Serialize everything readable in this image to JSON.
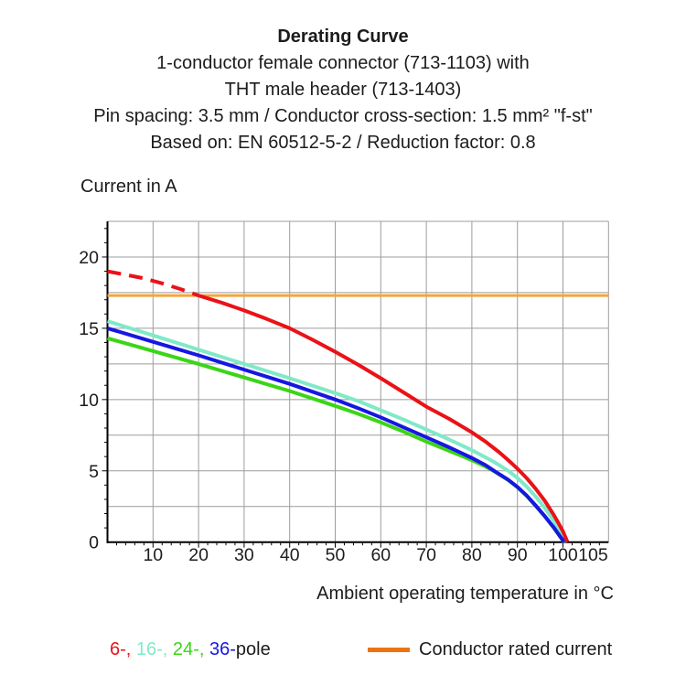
{
  "header": {
    "title": "Derating Curve",
    "subtitle_lines": [
      "1-conductor female connector (713-1103) with",
      "THT male header (713-1403)",
      "Pin spacing: 3.5 mm / Conductor cross-section: 1.5 mm² \"f-st\"",
      "Based on: EN 60512-5-2 / Reduction factor: 0.8"
    ]
  },
  "chart_data": {
    "type": "line",
    "title": "Derating Curve",
    "xlabel": "Ambient operating temperature in °C",
    "ylabel": "Current in A",
    "xlim": [
      0,
      110
    ],
    "ylim": [
      0,
      22.5
    ],
    "x_grid_step": 10,
    "y_grid_step": 2.5,
    "x_minor_tick_step": 2,
    "y_minor_tick_step": 1,
    "grid": true,
    "grid_color": "#9c9c9c",
    "axis_color": "#000000",
    "x_ticks": [
      10,
      20,
      30,
      40,
      50,
      60,
      70,
      80,
      90,
      100,
      105
    ],
    "y_ticks": [
      0,
      5,
      10,
      15,
      20
    ],
    "series": [
      {
        "name": "Conductor rated current",
        "color": "#f6a43c",
        "width": 3,
        "points": [
          [
            0,
            17.3
          ],
          [
            110,
            17.3
          ]
        ]
      },
      {
        "name": "16-pole",
        "color": "#7fe9c8",
        "width": 4,
        "points": [
          [
            0,
            15.5
          ],
          [
            10,
            14.5
          ],
          [
            20,
            13.5
          ],
          [
            30,
            12.5
          ],
          [
            40,
            11.5
          ],
          [
            50,
            10.45
          ],
          [
            55,
            9.9
          ],
          [
            60,
            9.25
          ],
          [
            65,
            8.6
          ],
          [
            70,
            7.9
          ],
          [
            75,
            7.2
          ],
          [
            80,
            6.45
          ],
          [
            83,
            5.95
          ],
          [
            85,
            5.6
          ],
          [
            88,
            5.0
          ],
          [
            90,
            4.5
          ],
          [
            92,
            3.9
          ],
          [
            94,
            3.2
          ],
          [
            96,
            2.4
          ],
          [
            98,
            1.5
          ],
          [
            99,
            0.95
          ],
          [
            100,
            0.35
          ],
          [
            100.6,
            0
          ]
        ]
      },
      {
        "name": "24-pole",
        "color": "#3bd517",
        "width": 4,
        "points": [
          [
            0,
            14.3
          ],
          [
            10,
            13.4
          ],
          [
            20,
            12.5
          ],
          [
            30,
            11.55
          ],
          [
            40,
            10.6
          ],
          [
            50,
            9.55
          ],
          [
            55,
            9.0
          ],
          [
            60,
            8.4
          ],
          [
            65,
            7.75
          ],
          [
            70,
            7.05
          ],
          [
            75,
            6.4
          ],
          [
            80,
            5.75
          ],
          [
            83,
            5.3
          ],
          [
            85,
            4.95
          ],
          [
            88,
            4.35
          ],
          [
            90,
            3.85
          ],
          [
            92,
            3.25
          ],
          [
            94,
            2.55
          ],
          [
            96,
            1.8
          ],
          [
            98,
            1.0
          ],
          [
            99,
            0.55
          ],
          [
            100,
            0.1
          ],
          [
            100.3,
            0
          ]
        ]
      },
      {
        "name": "36-pole",
        "color": "#1617e2",
        "width": 4,
        "points": [
          [
            0,
            15.0
          ],
          [
            10,
            14.05
          ],
          [
            20,
            13.1
          ],
          [
            30,
            12.1
          ],
          [
            40,
            11.1
          ],
          [
            50,
            10.0
          ],
          [
            55,
            9.4
          ],
          [
            60,
            8.75
          ],
          [
            65,
            8.05
          ],
          [
            70,
            7.35
          ],
          [
            75,
            6.65
          ],
          [
            80,
            5.9
          ],
          [
            83,
            5.4
          ],
          [
            85,
            4.97
          ],
          [
            88,
            4.37
          ],
          [
            90,
            3.87
          ],
          [
            92,
            3.27
          ],
          [
            94,
            2.57
          ],
          [
            96,
            1.82
          ],
          [
            98,
            1.02
          ],
          [
            99,
            0.57
          ],
          [
            100,
            0.12
          ],
          [
            100.35,
            0
          ]
        ]
      },
      {
        "name": "6-pole (below rated, dashed)",
        "color": "#ea1217",
        "width": 4,
        "dash": "15 9",
        "points": [
          [
            0,
            19.0
          ],
          [
            4,
            18.75
          ],
          [
            8,
            18.5
          ],
          [
            12,
            18.15
          ],
          [
            16,
            17.75
          ],
          [
            20,
            17.3
          ]
        ]
      },
      {
        "name": "6-pole",
        "color": "#ea1217",
        "width": 4,
        "points": [
          [
            20,
            17.3
          ],
          [
            25,
            16.8
          ],
          [
            30,
            16.25
          ],
          [
            35,
            15.65
          ],
          [
            40,
            15.0
          ],
          [
            45,
            14.2
          ],
          [
            50,
            13.35
          ],
          [
            55,
            12.45
          ],
          [
            60,
            11.5
          ],
          [
            65,
            10.5
          ],
          [
            70,
            9.5
          ],
          [
            75,
            8.65
          ],
          [
            80,
            7.7
          ],
          [
            83,
            7.05
          ],
          [
            86,
            6.3
          ],
          [
            88,
            5.75
          ],
          [
            90,
            5.15
          ],
          [
            92,
            4.5
          ],
          [
            94,
            3.75
          ],
          [
            96,
            2.9
          ],
          [
            98,
            1.9
          ],
          [
            99,
            1.35
          ],
          [
            100,
            0.75
          ],
          [
            101,
            0
          ]
        ]
      }
    ],
    "legend_position": "bottom"
  },
  "legend": {
    "pole_parts": [
      {
        "text": "6-,",
        "color": "#ea1217"
      },
      {
        "text": " 16-,",
        "color": "#7fe9c8"
      },
      {
        "text": " 24-,",
        "color": "#3bd517"
      },
      {
        "text": " 36-",
        "color": "#1617e2"
      },
      {
        "text": "pole",
        "color": "#1c1c1c"
      }
    ],
    "rated": {
      "label": "Conductor rated current",
      "swatch_color": "#ee7310"
    }
  },
  "colors": {
    "red_6pole": "#ea1217",
    "mint_16pole": "#7fe9c8",
    "green_24pole": "#3bd517",
    "blue_36pole": "#1617e2",
    "orange_rated_line": "#f6a43c",
    "orange_legend_swatch": "#ee7310",
    "grid": "#9c9c9c",
    "text": "#1c1c1c"
  }
}
